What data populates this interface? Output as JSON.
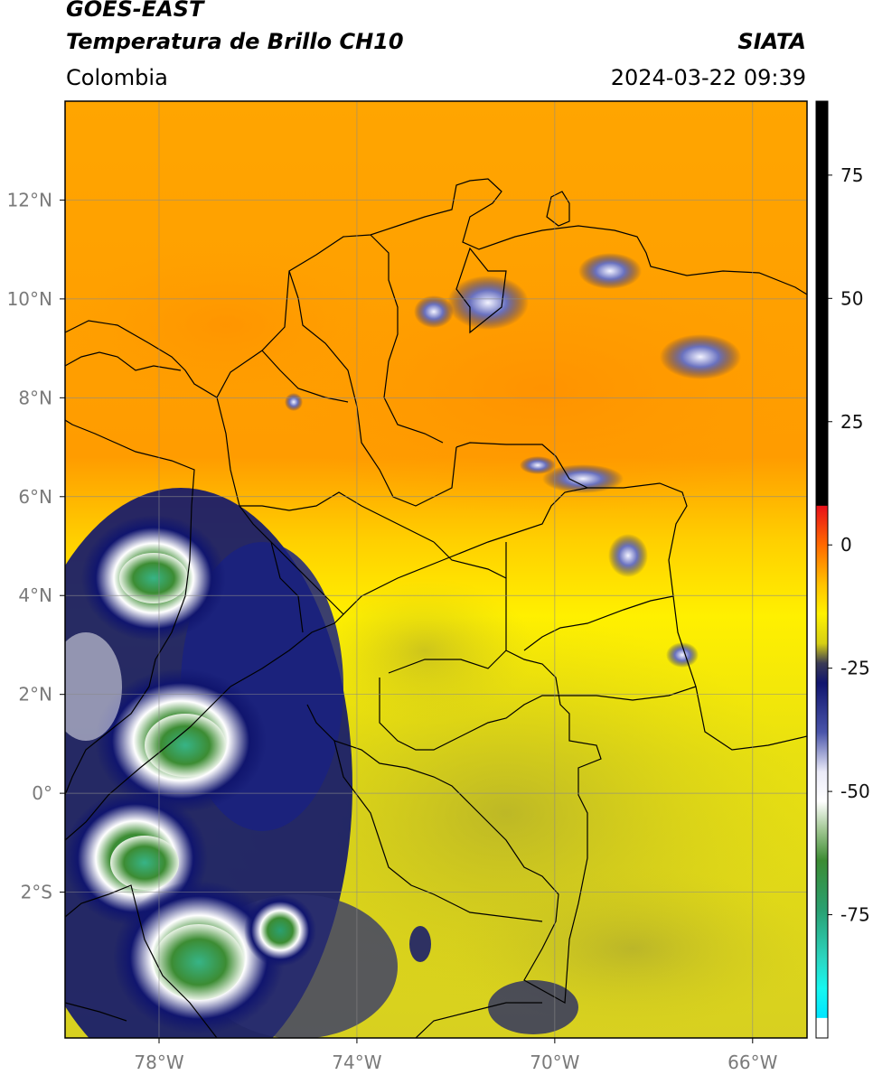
{
  "header": {
    "satellite": "GOES-EAST",
    "product": "Temperatura de Brillo CH10",
    "organization": "SIATA",
    "region": "Colombia",
    "timestamp": "2024-03-22 09:39"
  },
  "map": {
    "lat_ticks": [
      {
        "value": 12,
        "label": "12°N"
      },
      {
        "value": 10,
        "label": "10°N"
      },
      {
        "value": 8,
        "label": "8°N"
      },
      {
        "value": 6,
        "label": "6°N"
      },
      {
        "value": 4,
        "label": "4°N"
      },
      {
        "value": 2,
        "label": "2°N"
      },
      {
        "value": 0,
        "label": "0°"
      },
      {
        "value": -2,
        "label": "2°S"
      }
    ],
    "lon_ticks": [
      {
        "value": -78,
        "label": "78°W"
      },
      {
        "value": -74,
        "label": "74°W"
      },
      {
        "value": -70,
        "label": "70°W"
      },
      {
        "value": -66,
        "label": "66°W"
      }
    ],
    "extent": {
      "lon_min": -79.9,
      "lon_max": -64.9,
      "lat_min": -4.95,
      "lat_max": 14.0
    },
    "gridlines": true
  },
  "colorbar": {
    "ticks": [
      {
        "value": 75,
        "label": "75"
      },
      {
        "value": 50,
        "label": "50"
      },
      {
        "value": 25,
        "label": "25"
      },
      {
        "value": 0,
        "label": "0"
      },
      {
        "value": -25,
        "label": "-25"
      },
      {
        "value": -50,
        "label": "-50"
      },
      {
        "value": -75,
        "label": "-75"
      }
    ],
    "range": [
      -100,
      90
    ],
    "stops": [
      {
        "value": 90,
        "color": "#000000"
      },
      {
        "value": 8,
        "color": "#000000"
      },
      {
        "value": 7.9,
        "color": "#e8101a"
      },
      {
        "value": 0,
        "color": "#ff6a00"
      },
      {
        "value": -8,
        "color": "#ffc200"
      },
      {
        "value": -14,
        "color": "#fff100"
      },
      {
        "value": -20,
        "color": "#d6cf14"
      },
      {
        "value": -24,
        "color": "#3a3a55"
      },
      {
        "value": -28,
        "color": "#10156e"
      },
      {
        "value": -38,
        "color": "#4a55aa"
      },
      {
        "value": -46,
        "color": "#eaeaf8"
      },
      {
        "value": -52,
        "color": "#ffffff"
      },
      {
        "value": -58,
        "color": "#9dc58f"
      },
      {
        "value": -64,
        "color": "#3c8c33"
      },
      {
        "value": -74,
        "color": "#2aa071"
      },
      {
        "value": -84,
        "color": "#2bd6c1"
      },
      {
        "value": -90,
        "color": "#17f7f0"
      },
      {
        "value": -95.9,
        "color": "#00e5ff"
      },
      {
        "value": -96,
        "color": "#ffffff"
      },
      {
        "value": -100,
        "color": "#ffffff"
      }
    ]
  }
}
